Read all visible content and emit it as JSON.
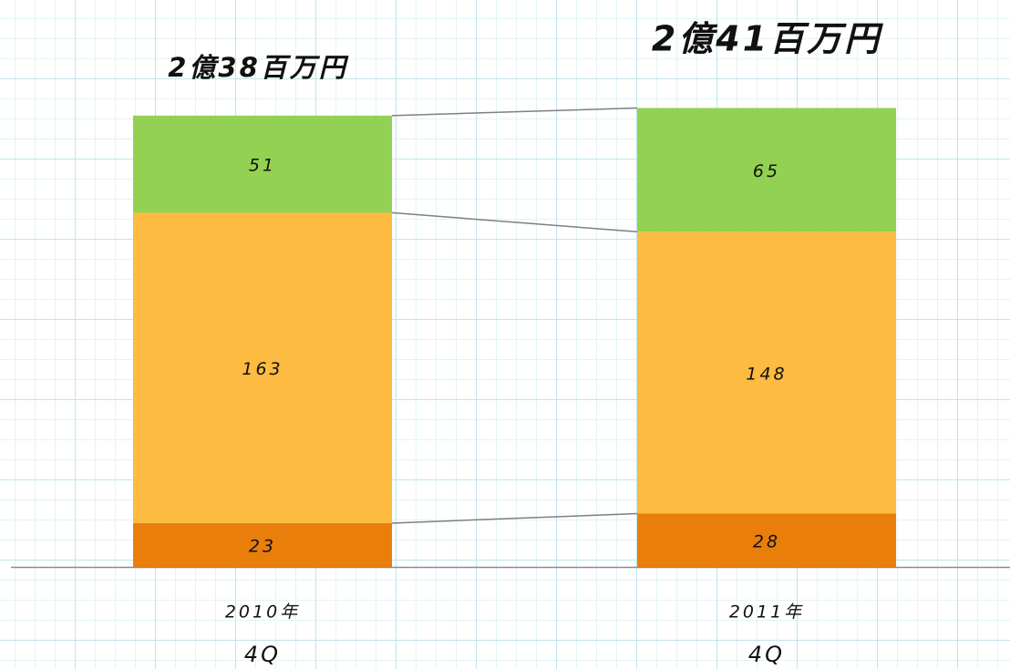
{
  "chart_data": {
    "type": "stacked_bar",
    "categories": [
      [
        "2010年",
        "4Q"
      ],
      [
        "2011年",
        "4Q"
      ]
    ],
    "total_labels": [
      "2億38百万円",
      "2億41百万円"
    ],
    "series": [
      {
        "color": "#e97e0b",
        "values": [
          23,
          28
        ]
      },
      {
        "color": "#fdbb41",
        "values": [
          163,
          148
        ]
      },
      {
        "color": "#93d152",
        "values": [
          51,
          65
        ]
      }
    ],
    "ylim": [
      0,
      280
    ]
  }
}
